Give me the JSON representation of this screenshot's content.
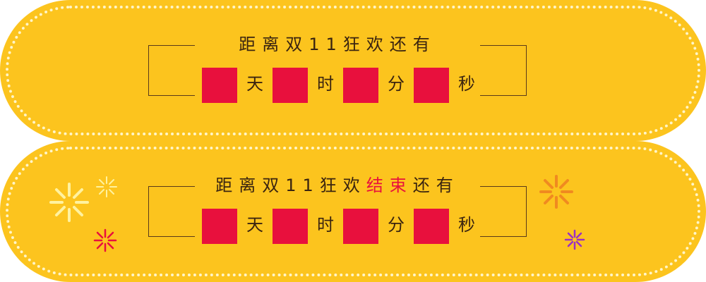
{
  "top_banner": {
    "headline_text": "距离双11狂欢还有",
    "units": {
      "day": "天",
      "hour": "时",
      "minute": "分",
      "second": "秒"
    }
  },
  "bottom_banner": {
    "headline_prefix": "距离双11狂欢",
    "headline_highlight": "结束",
    "headline_suffix": "还有",
    "units": {
      "day": "天",
      "hour": "时",
      "minute": "分",
      "second": "秒"
    }
  },
  "colors": {
    "panel": "#fcc41e",
    "dots": "#fff5c8",
    "box": "#e8103d",
    "text": "#3a2410",
    "highlight": "#e8103d"
  },
  "icons": [
    "firework-icon"
  ]
}
